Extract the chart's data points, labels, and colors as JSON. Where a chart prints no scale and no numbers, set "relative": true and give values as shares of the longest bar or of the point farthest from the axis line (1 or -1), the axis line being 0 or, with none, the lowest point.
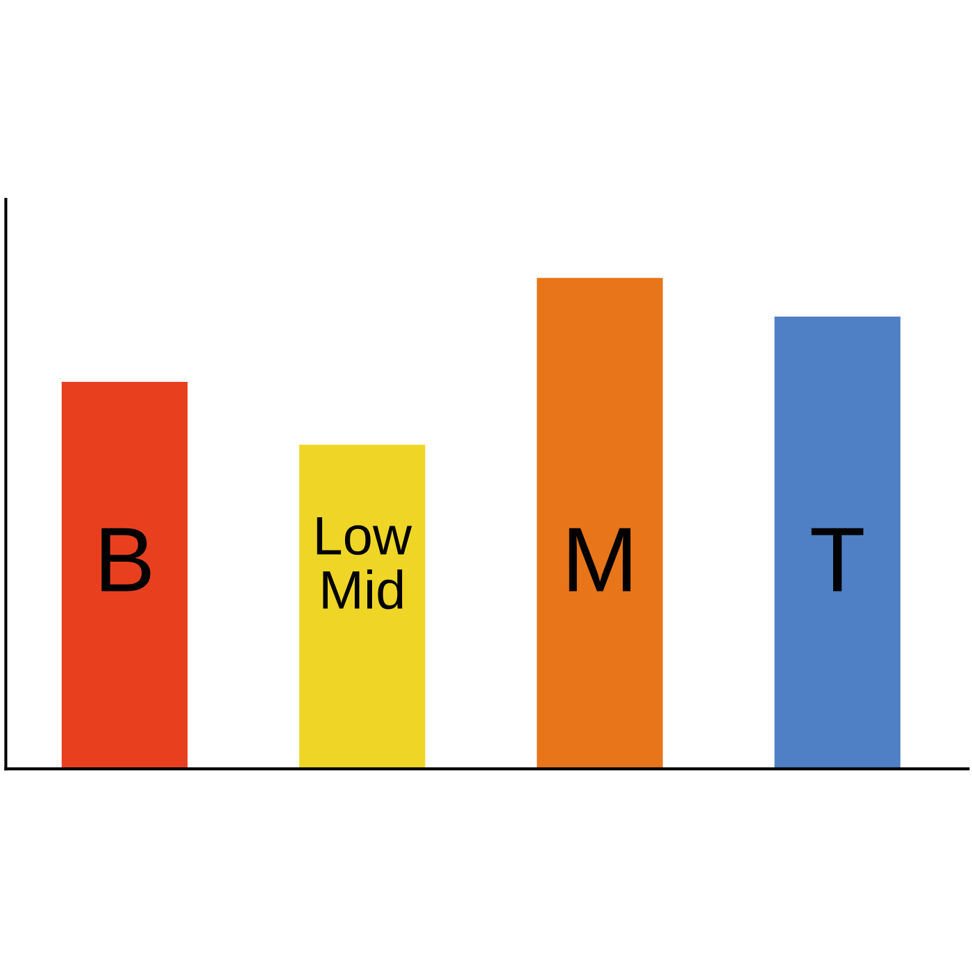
{
  "chart_data": {
    "type": "bar",
    "relative": true,
    "categories": [
      "B",
      "Low Mid",
      "M",
      "T"
    ],
    "values": [
      0.788,
      0.66,
      1,
      0.921
    ],
    "colors": [
      "#e8401f",
      "#efd626",
      "#e8751a",
      "#4f7fc4"
    ]
  }
}
